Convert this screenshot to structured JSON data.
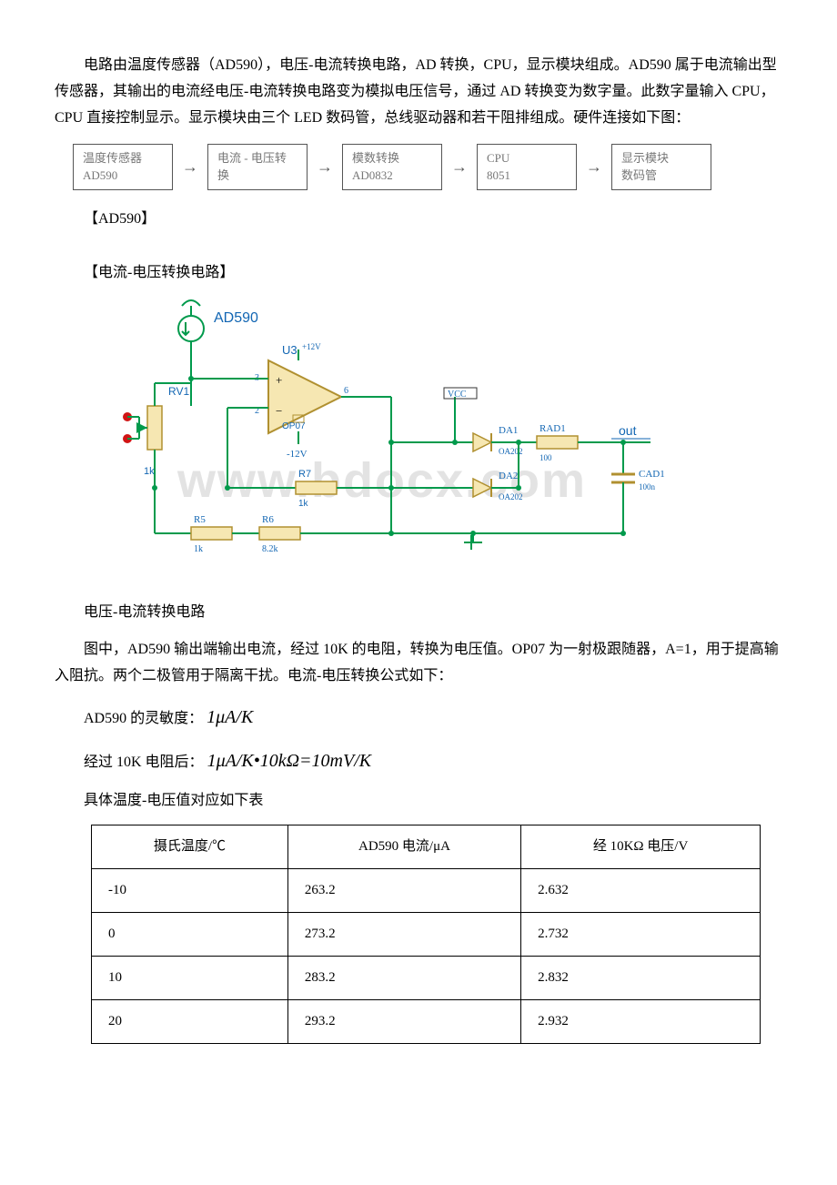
{
  "para1": "电路由温度传感器（AD590），电压-电流转换电路，AD 转换，CPU，显示模块组成。AD590 属于电流输出型传感器，其输出的电流经电压-电流转换电路变为模拟电压信号，通过 AD 转换变为数字量。此数字量输入 CPU，CPU 直接控制显示。显示模块由三个 LED 数码管，总线驱动器和若干阻排组成。硬件连接如下图：",
  "flow": {
    "boxes": [
      {
        "l1": "温度传感器",
        "l2": "AD590"
      },
      {
        "l1": "电流 - 电压转",
        "l2": "换"
      },
      {
        "l1": "模数转换",
        "l2": "AD0832"
      },
      {
        "l1": "CPU",
        "l2": "8051"
      },
      {
        "l1": "显示模块",
        "l2": "数码管"
      }
    ]
  },
  "head1": "【AD590】",
  "head2": "【电流-电压转换电路】",
  "circuit": {
    "labels": {
      "ad590": "AD590",
      "u3": "U3",
      "op07": "OP07",
      "plus12v": "+12V",
      "minus12v": "-12V",
      "rv1": "RV1",
      "rv1_val": "1k",
      "r5": "R5",
      "r5_val": "1k",
      "r6": "R6",
      "r6_val": "8.2k",
      "r7": "R7",
      "r7_val": "1k",
      "vcc": "VCC",
      "da1": "DA1",
      "da1_val": "OA202",
      "da2": "DA2",
      "da2_val": "OA202",
      "rad1": "RAD1",
      "rad1_val": "100",
      "cad1": "CAD1",
      "cad1_val": "100n",
      "out": "out"
    },
    "colors": {
      "wire": "#009a4c",
      "comp_fill": "#f6e7b2",
      "comp_stroke": "#b09030",
      "text": "#1266b3",
      "red": "#d01515",
      "gray": "#777",
      "wm": "#d9d9d9"
    }
  },
  "caption1": "电压-电流转换电路",
  "para2": "图中，AD590 输出端输出电流，经过 10K 的电阻，转换为电压值。OP07 为一射极跟随器，A=1，用于提高输入阻抗。两个二极管用于隔离干扰。电流-电压转换公式如下：",
  "line_sens_label": "AD590 的灵敏度：",
  "line_sens_formula": "1μA/K",
  "line_conv_label": "经过 10K 电阻后：",
  "line_conv_formula": "1μA/K•10kΩ=10mV/K",
  "table_intro": "具体温度-电压值对应如下表",
  "table": {
    "headers": [
      "摄氏温度/℃",
      "AD590 电流/μA",
      "经 10KΩ 电压/V"
    ],
    "rows": [
      [
        "-10",
        "263.2",
        "2.632"
      ],
      [
        "0",
        "273.2",
        "2.732"
      ],
      [
        "10",
        "283.2",
        "2.832"
      ],
      [
        "20",
        "293.2",
        "2.932"
      ]
    ]
  }
}
